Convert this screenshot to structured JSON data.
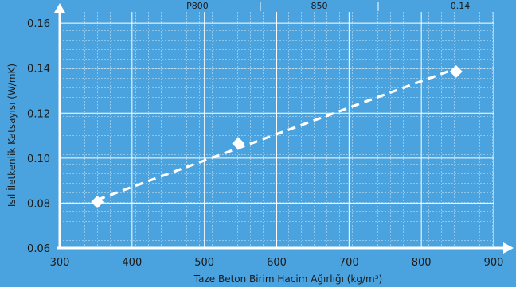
{
  "header_row": [
    "P800",
    "850",
    "0.14"
  ],
  "chart_data": {
    "type": "scatter",
    "xlabel": "Taze Beton Birim Hacim Ağırlığı (kg/m³)",
    "ylabel": "Isıl İletkenlik Katsayısı (W/mK)",
    "xlim": [
      300,
      900
    ],
    "ylim": [
      0.06,
      0.165
    ],
    "x_ticks": [
      "300",
      "400",
      "500",
      "600",
      "700",
      "800",
      "900"
    ],
    "y_ticks": [
      "0.06",
      "0.08",
      "0.10",
      "0.12",
      "0.14",
      "0.16"
    ],
    "x_tick_values": [
      300,
      400,
      500,
      600,
      700,
      800,
      900
    ],
    "y_tick_values": [
      0.06,
      0.08,
      0.1,
      0.12,
      0.14,
      0.16
    ],
    "points": [
      {
        "x": 352,
        "y": 0.0805
      },
      {
        "x": 547,
        "y": 0.1065
      },
      {
        "x": 848,
        "y": 0.1385
      }
    ],
    "trendline": {
      "style": "dashed",
      "x": [
        352,
        845
      ],
      "y": [
        0.0815,
        0.1395
      ]
    },
    "grid": true,
    "colors": {
      "background": "#4aa3de",
      "marks": "#ffffff",
      "text": "#1a1a1a"
    }
  }
}
